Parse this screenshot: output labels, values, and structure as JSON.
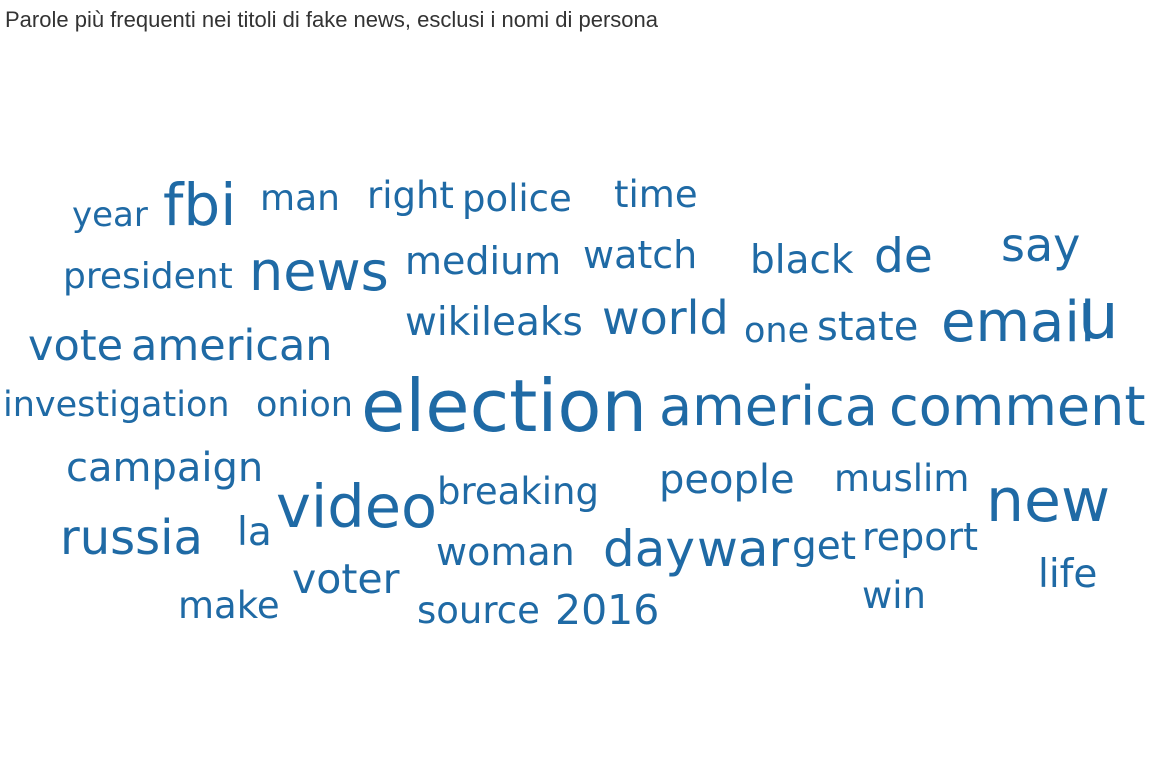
{
  "title": "Parole più frequenti nei titoli di fake news, esclusi i nomi di persona",
  "colors": {
    "title": "#333333",
    "word": "#1f6aa5",
    "background": "#ffffff"
  },
  "chart_data": {
    "type": "wordcloud",
    "title": "Parole più frequenti nei titoli di fake news, esclusi i nomi di persona",
    "words": [
      {
        "text": "year"
      },
      {
        "text": "fbi"
      },
      {
        "text": "man"
      },
      {
        "text": "right"
      },
      {
        "text": "police"
      },
      {
        "text": "time"
      },
      {
        "text": "president"
      },
      {
        "text": "news"
      },
      {
        "text": "medium"
      },
      {
        "text": "watch"
      },
      {
        "text": "black"
      },
      {
        "text": "de"
      },
      {
        "text": "say"
      },
      {
        "text": "vote"
      },
      {
        "text": "american"
      },
      {
        "text": "wikileaks"
      },
      {
        "text": "world"
      },
      {
        "text": "one"
      },
      {
        "text": "state"
      },
      {
        "text": "email"
      },
      {
        "text": "u"
      },
      {
        "text": "investigation"
      },
      {
        "text": "onion"
      },
      {
        "text": "election"
      },
      {
        "text": "america"
      },
      {
        "text": "comment"
      },
      {
        "text": "campaign"
      },
      {
        "text": "video"
      },
      {
        "text": "breaking"
      },
      {
        "text": "people"
      },
      {
        "text": "muslim"
      },
      {
        "text": "new"
      },
      {
        "text": "russia"
      },
      {
        "text": "la"
      },
      {
        "text": "woman"
      },
      {
        "text": "day"
      },
      {
        "text": "war"
      },
      {
        "text": "get"
      },
      {
        "text": "report"
      },
      {
        "text": "voter"
      },
      {
        "text": "life"
      },
      {
        "text": "make"
      },
      {
        "text": "source"
      },
      {
        "text": "2016"
      },
      {
        "text": "win"
      }
    ]
  }
}
